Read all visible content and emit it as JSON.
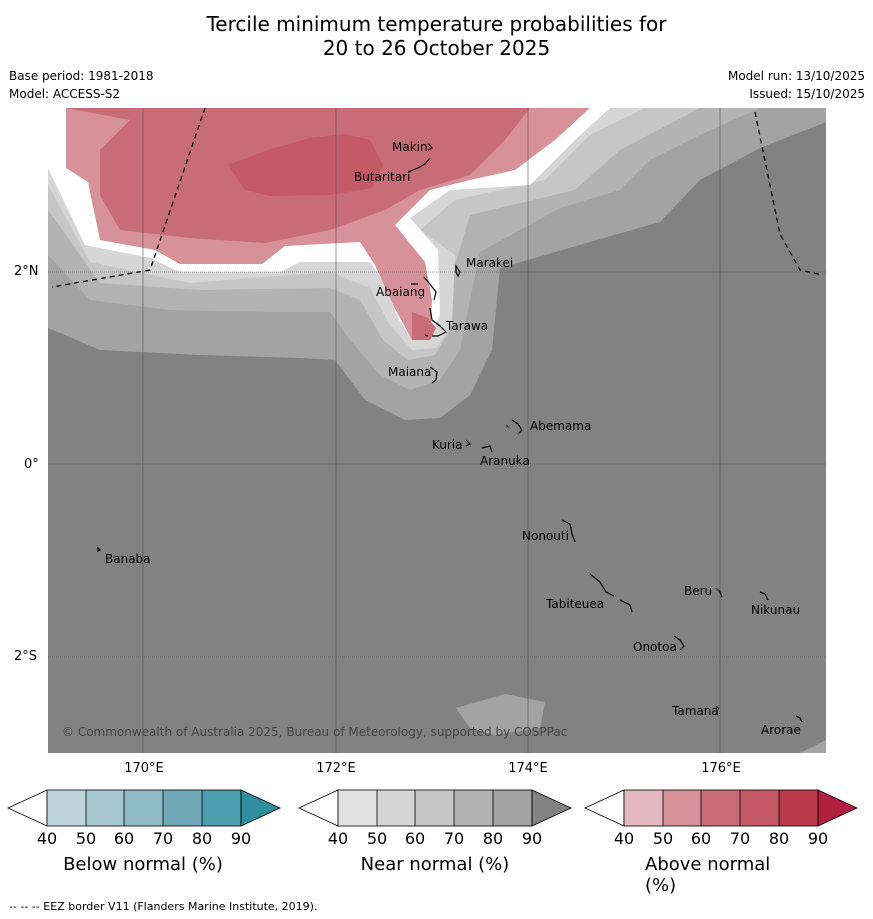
{
  "title_line1": "Tercile minimum temperature probabilities for",
  "title_line2": "20 to 26 October 2025",
  "meta": {
    "base_period": "Base period: 1981-2018",
    "model": "Model: ACCESS-S2",
    "model_run": "Model run: 13/10/2025",
    "issued": "Issued: 15/10/2025"
  },
  "map": {
    "lat_labels": [
      "2°N",
      "0°",
      "2°S"
    ],
    "lon_labels": [
      "170°E",
      "172°E",
      "174°E",
      "176°E"
    ],
    "places": [
      "Makin",
      "Butaritari",
      "Marakei",
      "Abaiang",
      "Tarawa",
      "Maiana",
      "Abemama",
      "Kuria",
      "Aranuka",
      "Nonouti",
      "Banaba",
      "Beru",
      "Nikunau",
      "Tabiteuea",
      "Onotoa",
      "Tamana",
      "Arorae"
    ],
    "copyright": "© Commonwealth of Australia 2025, Bureau of Meteorology, supported by COSPPac",
    "colors": {
      "near_40": "#e2e2e2",
      "near_50": "#d6d6d6",
      "near_60": "#c6c6c6",
      "near_70": "#b3b3b3",
      "near_80": "#a3a3a3",
      "near_90": "#828282",
      "above_40": "#e2b7be",
      "above_50": "#d69199",
      "above_60": "#c86c77",
      "above_70": "#c35a66",
      "above_80": "#ba3a4c",
      "above_90": "#b21f3f",
      "below_40": "#bdd4dc",
      "below_50": "#a6c7cf",
      "below_60": "#8fbac5",
      "below_70": "#6fa9b7",
      "below_80": "#4a9eae",
      "below_90": "#2f8e9e"
    }
  },
  "colorbars": [
    {
      "title": "Below normal (%)",
      "ticks": [
        "40",
        "50",
        "60",
        "70",
        "80",
        "90"
      ]
    },
    {
      "title": "Near normal (%)",
      "ticks": [
        "40",
        "50",
        "60",
        "70",
        "80",
        "90"
      ]
    },
    {
      "title": "Above normal (%)",
      "ticks": [
        "40",
        "50",
        "60",
        "70",
        "80",
        "90"
      ]
    }
  ],
  "footer": "--  --  -- EEZ border V11 (Flanders Marine Institute, 2019)."
}
